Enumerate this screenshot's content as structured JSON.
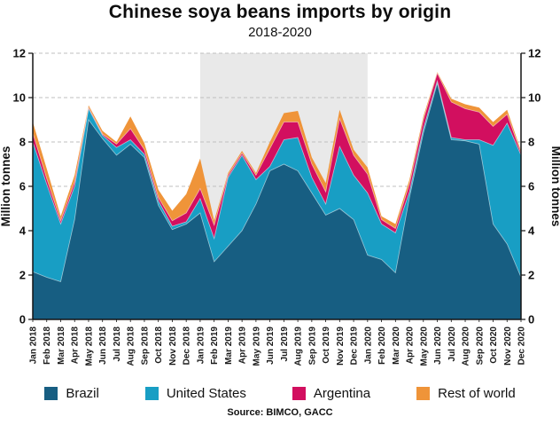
{
  "title": "Chinese soya beans imports by origin",
  "subtitle": "2018-2020",
  "source": "Source: BIMCO, GACC",
  "y_axis": {
    "label_left": "Million tonnes",
    "label_right": "Million tonnes",
    "ticks": [
      0,
      2,
      4,
      6,
      8,
      10,
      12
    ],
    "max": 12
  },
  "highlight_band": {
    "start_month": "Jan 2019",
    "end_month": "Jan 2020",
    "start_index": 12,
    "end_index": 24,
    "color": "#e9e9e9"
  },
  "colors": {
    "brazil": "#175E82",
    "united_states": "#189EC4",
    "argentina": "#D20F5F",
    "rest_of_world": "#EF9439",
    "grid": "#bfbfbf",
    "axis": "#141414",
    "band": "#e9e9e9"
  },
  "legend": [
    {
      "label": "Brazil",
      "color": "#175E82"
    },
    {
      "label": "United States",
      "color": "#189EC4"
    },
    {
      "label": "Argentina",
      "color": "#D20F5F"
    },
    {
      "label": "Rest of world",
      "color": "#EF9439"
    }
  ],
  "chart_data": {
    "type": "area",
    "stacked": true,
    "grid": "dashed-horizontal",
    "legend_position": "bottom",
    "ylim": [
      0,
      12
    ],
    "ylabel": "Million tonnes",
    "x": [
      "Jan 2018",
      "Feb 2018",
      "Mar 2018",
      "Apr 2018",
      "May 2018",
      "Jun 2018",
      "Jul 2018",
      "Aug 2018",
      "Sep 2018",
      "Oct 2018",
      "Nov 2018",
      "Dec 2018",
      "Jan 2019",
      "Feb 2019",
      "Mar 2019",
      "Apr 2019",
      "May 2019",
      "Jun 2019",
      "Jul 2019",
      "Aug 2019",
      "Sep 2019",
      "Oct 2019",
      "Nov 2019",
      "Dec 2019",
      "Jan 2020",
      "Feb 2020",
      "Mar 2020",
      "Apr 2020",
      "May 2020",
      "Jun 2020",
      "Jul 2020",
      "Aug 2020",
      "Sep 2020",
      "Oct 2020",
      "Nov 2020",
      "Dec 2020"
    ],
    "series": [
      {
        "name": "Brazil",
        "color": "#175E82",
        "values": [
          2.15,
          1.9,
          1.7,
          4.5,
          9.0,
          8.15,
          7.4,
          7.9,
          7.3,
          5.15,
          4.05,
          4.3,
          4.8,
          2.6,
          3.3,
          4.0,
          5.2,
          6.7,
          7.0,
          6.7,
          5.7,
          4.7,
          5.0,
          4.5,
          2.9,
          2.7,
          2.1,
          5.5,
          8.4,
          10.65,
          8.1,
          8.05,
          7.9,
          4.3,
          3.4,
          1.9
        ]
      },
      {
        "name": "United States",
        "color": "#189EC4",
        "values": [
          5.85,
          4.2,
          2.6,
          1.5,
          0.5,
          0.15,
          0.35,
          0.2,
          0.15,
          0.2,
          0.15,
          0.1,
          0.65,
          1.05,
          3.1,
          3.4,
          1.1,
          0.2,
          1.1,
          1.5,
          0.7,
          0.5,
          2.8,
          2.0,
          2.8,
          1.6,
          1.8,
          0.25,
          0.2,
          0.1,
          0.1,
          0.05,
          0.2,
          3.55,
          5.45,
          5.5
        ]
      },
      {
        "name": "Argentina",
        "color": "#D20F5F",
        "values": [
          0.4,
          0.25,
          0.15,
          0.2,
          0.05,
          0.05,
          0.15,
          0.5,
          0.2,
          0.15,
          0.25,
          0.4,
          0.45,
          0.6,
          0.1,
          0.1,
          0.2,
          0.8,
          0.8,
          0.7,
          0.6,
          0.55,
          1.25,
          0.9,
          0.85,
          0.2,
          0.2,
          0.35,
          0.4,
          0.35,
          1.6,
          1.4,
          1.25,
          0.85,
          0.4,
          0.1
        ]
      },
      {
        "name": "Rest of world",
        "color": "#EF9439",
        "values": [
          0.5,
          0.45,
          0.2,
          0.3,
          0.1,
          0.15,
          0.1,
          0.55,
          0.3,
          0.35,
          0.45,
          0.85,
          1.35,
          0.2,
          0.1,
          0.1,
          0.1,
          0.3,
          0.4,
          0.5,
          0.3,
          0.4,
          0.4,
          0.25,
          0.3,
          0.15,
          0.2,
          0.2,
          0.15,
          0.05,
          0.15,
          0.2,
          0.2,
          0.2,
          0.2,
          0.1
        ]
      }
    ]
  }
}
